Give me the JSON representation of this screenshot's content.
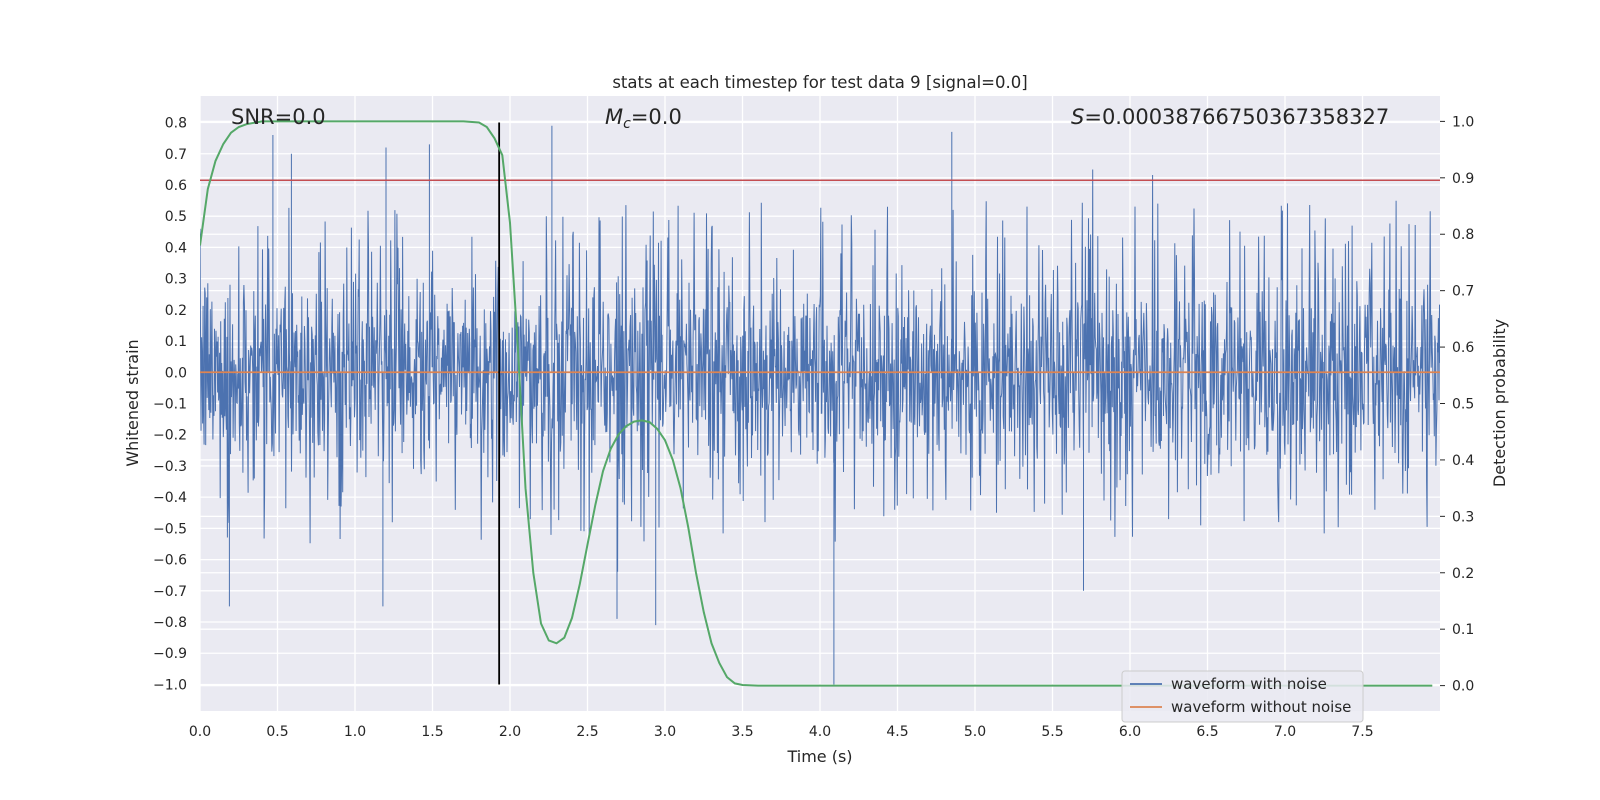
{
  "chart_data": {
    "type": "line",
    "title": "stats at each timestep for test data 9 [signal=0.0]",
    "xlabel": "Time (s)",
    "ylabel": "Whitened strain",
    "ylabel_right": "Detection probability",
    "xlim": [
      0.0,
      8.0
    ],
    "ylim": [
      -1.085,
      0.885
    ],
    "ylim_right": [
      -0.045,
      1.045
    ],
    "x_ticks": [
      0.0,
      0.5,
      1.0,
      1.5,
      2.0,
      2.5,
      3.0,
      3.5,
      4.0,
      4.5,
      5.0,
      5.5,
      6.0,
      6.5,
      7.0,
      7.5
    ],
    "x_tick_labels": [
      "0.0",
      "0.5",
      "1.0",
      "1.5",
      "2.0",
      "2.5",
      "3.0",
      "3.5",
      "4.0",
      "4.5",
      "5.0",
      "5.5",
      "6.0",
      "6.5",
      "7.0",
      "7.5"
    ],
    "y_ticks": [
      0.8,
      0.7,
      0.6,
      0.5,
      0.4,
      0.3,
      0.2,
      0.1,
      0.0,
      -0.1,
      -0.2,
      -0.3,
      -0.4,
      -0.5,
      -0.6,
      -0.7,
      -0.8,
      -0.9,
      -1.0
    ],
    "y_tick_labels": [
      "0.8",
      "0.7",
      "0.6",
      "0.5",
      "0.4",
      "0.3",
      "0.2",
      "0.1",
      "0.0",
      "−0.1",
      "−0.2",
      "−0.3",
      "−0.4",
      "−0.5",
      "−0.6",
      "−0.7",
      "−0.8",
      "−0.9",
      "−1.0"
    ],
    "y_ticks_right": [
      1.0,
      0.9,
      0.8,
      0.7,
      0.6,
      0.5,
      0.4,
      0.3,
      0.2,
      0.1,
      0.0
    ],
    "y_tick_labels_right": [
      "1.0",
      "0.9",
      "0.8",
      "0.7",
      "0.6",
      "0.5",
      "0.4",
      "0.3",
      "0.2",
      "0.1",
      "0.0"
    ],
    "grid": true,
    "legend_placement": "lower right",
    "series": [
      {
        "name": "waveform with noise",
        "color": "#4c72b0",
        "description_values": {
          "typical_band": [
            -0.28,
            0.25
          ],
          "frequent_peak_range": [
            -0.55,
            0.55
          ],
          "spikes": [
            {
              "x": 0.19,
              "y": -0.75
            },
            {
              "x": 0.47,
              "y": 0.76
            },
            {
              "x": 0.59,
              "y": 0.7
            },
            {
              "x": 1.18,
              "y": -0.75
            },
            {
              "x": 1.2,
              "y": 0.72
            },
            {
              "x": 1.48,
              "y": 0.73
            },
            {
              "x": 2.27,
              "y": 0.79
            },
            {
              "x": 2.69,
              "y": -0.79
            },
            {
              "x": 2.94,
              "y": -0.81
            },
            {
              "x": 4.09,
              "y": -1.0
            },
            {
              "x": 4.85,
              "y": 0.77
            },
            {
              "x": 5.7,
              "y": -0.7
            }
          ]
        }
      },
      {
        "name": "waveform without noise",
        "color": "#dd8452",
        "x": [
          0.0,
          8.0
        ],
        "y": [
          0.0,
          0.0
        ]
      },
      {
        "color": "#55a868",
        "axis": "right",
        "x": [
          0.0,
          0.05,
          0.1,
          0.15,
          0.2,
          0.25,
          0.3,
          0.4,
          0.5,
          0.6,
          0.8,
          1.0,
          1.2,
          1.4,
          1.6,
          1.7,
          1.8,
          1.85,
          1.9,
          1.95,
          2.0,
          2.05,
          2.1,
          2.15,
          2.2,
          2.25,
          2.3,
          2.35,
          2.4,
          2.45,
          2.5,
          2.55,
          2.6,
          2.65,
          2.7,
          2.75,
          2.8,
          2.85,
          2.9,
          2.95,
          3.0,
          3.05,
          3.1,
          3.15,
          3.2,
          3.25,
          3.3,
          3.35,
          3.4,
          3.45,
          3.5,
          3.6,
          3.7,
          3.8,
          4.0,
          5.0,
          6.0,
          7.0,
          7.95
        ],
        "y": [
          0.78,
          0.88,
          0.93,
          0.96,
          0.98,
          0.99,
          0.995,
          1.0,
          1.0,
          1.0,
          1.0,
          1.0,
          1.0,
          1.0,
          1.0,
          1.0,
          0.998,
          0.99,
          0.97,
          0.94,
          0.82,
          0.6,
          0.35,
          0.2,
          0.11,
          0.08,
          0.075,
          0.085,
          0.12,
          0.18,
          0.25,
          0.32,
          0.38,
          0.42,
          0.445,
          0.46,
          0.468,
          0.47,
          0.467,
          0.455,
          0.435,
          0.4,
          0.35,
          0.28,
          0.2,
          0.13,
          0.075,
          0.04,
          0.015,
          0.004,
          0.001,
          0.0,
          0.0,
          0.0,
          0.0,
          0.0,
          0.0,
          0.0,
          0.0
        ]
      }
    ],
    "hlines": [
      {
        "y": 0.615,
        "color": "#c44e52"
      }
    ],
    "vlines": [
      {
        "x": 1.93,
        "ymin": -1.0,
        "ymax": 0.8,
        "color": "#000000"
      }
    ],
    "annotations": {
      "snr": "SNR=0.0",
      "mc_symbol": "M",
      "mc_sub": "c",
      "mc_value": "=0.0",
      "s_symbol": "S",
      "s_value": "=0.00038766750367358327"
    },
    "legend": {
      "entry1": "waveform with noise",
      "entry2": "waveform without noise"
    }
  }
}
